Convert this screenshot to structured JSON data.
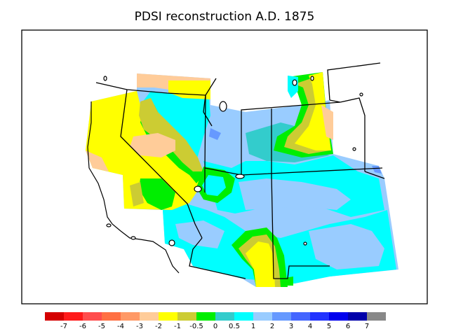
{
  "title": "PDSI reconstruction A.D. 1875",
  "palette": {
    "dark_red": "#d40000",
    "red": "#ff1a1a",
    "red2": "#ff4d4d",
    "orange_red": "#ff7043",
    "orange": "#ff9966",
    "peach": "#ffcc99",
    "yellow": "#ffff00",
    "olive": "#cccc33",
    "green": "#00ee00",
    "teal": "#33cccc",
    "cyan": "#00ffff",
    "light_blue": "#99ccff",
    "blue2": "#6699ff",
    "blue3": "#4466ff",
    "blue4": "#2233ff",
    "blue5": "#0000ee",
    "navy": "#0000aa",
    "gray": "#888888"
  },
  "legend": {
    "swatches": [
      "#d40000",
      "#ff1a1a",
      "#ff4d4d",
      "#ff7043",
      "#ff9966",
      "#ffcc99",
      "#ffff00",
      "#cccc33",
      "#00ee00",
      "#33cccc",
      "#00ffff",
      "#99ccff",
      "#6699ff",
      "#4466ff",
      "#2233ff",
      "#0000ee",
      "#0000aa",
      "#888888"
    ],
    "ticks": [
      "-7",
      "-6",
      "-5",
      "-4",
      "-3",
      "-2",
      "-1",
      "-0.5",
      "0",
      "0.5",
      "1",
      "2",
      "3",
      "4",
      "5",
      "6",
      "7"
    ]
  }
}
